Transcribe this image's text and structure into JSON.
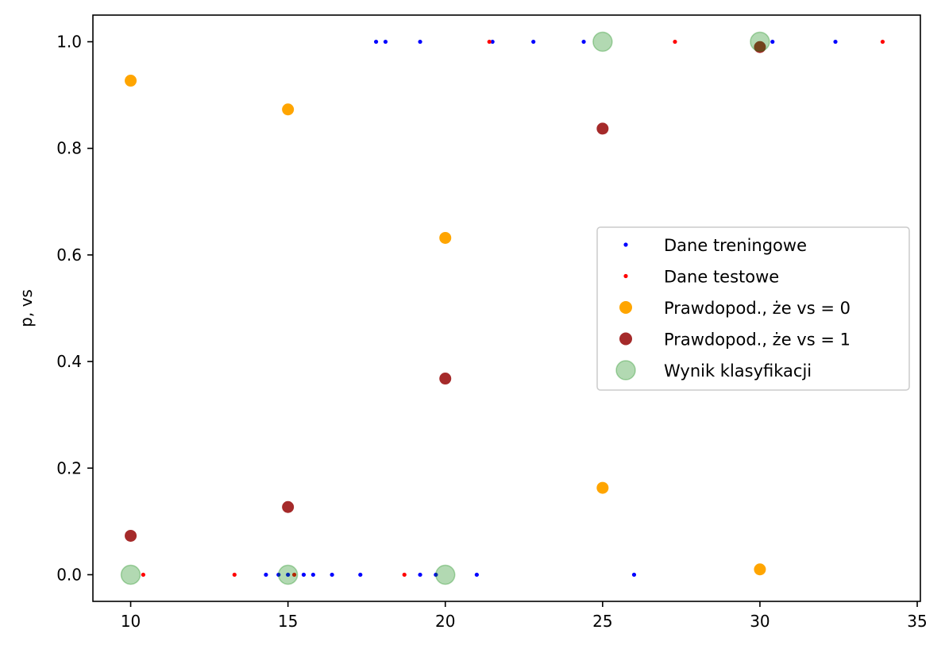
{
  "chart_data": {
    "type": "scatter",
    "title": "",
    "xlabel": "",
    "ylabel": "p, vs",
    "xlim": [
      8.8,
      35.1
    ],
    "ylim": [
      -0.05,
      1.05
    ],
    "xticks": [
      10,
      15,
      20,
      25,
      30,
      35
    ],
    "yticks": [
      0.0,
      0.2,
      0.4,
      0.6,
      0.8,
      1.0
    ],
    "xtick_labels": [
      "10",
      "15",
      "20",
      "25",
      "30",
      "35"
    ],
    "ytick_labels": [
      "0.0",
      "0.2",
      "0.4",
      "0.6",
      "0.8",
      "1.0"
    ],
    "grid": false,
    "legend_position": "center-right",
    "series": [
      {
        "name": "Dane treningowe",
        "color": "#0000ff",
        "marker": "small-dot",
        "points": [
          [
            17.8,
            1
          ],
          [
            18.1,
            1
          ],
          [
            19.2,
            1
          ],
          [
            21.5,
            1
          ],
          [
            22.8,
            1
          ],
          [
            24.4,
            1
          ],
          [
            30.4,
            1
          ],
          [
            32.4,
            1
          ],
          [
            14.3,
            0
          ],
          [
            14.7,
            0
          ],
          [
            15.0,
            0
          ],
          [
            15.5,
            0
          ],
          [
            15.8,
            0
          ],
          [
            16.4,
            0
          ],
          [
            17.3,
            0
          ],
          [
            19.2,
            0
          ],
          [
            19.7,
            0
          ],
          [
            21.0,
            0
          ],
          [
            26.0,
            0
          ]
        ]
      },
      {
        "name": "Dane testowe",
        "color": "#ff0000",
        "marker": "small-dot",
        "points": [
          [
            21.4,
            1
          ],
          [
            27.3,
            1
          ],
          [
            33.9,
            1
          ],
          [
            10.4,
            0
          ],
          [
            13.3,
            0
          ],
          [
            15.2,
            0
          ],
          [
            18.7,
            0
          ]
        ]
      },
      {
        "name": "Prawdopod., że vs = 0",
        "color": "#ffa500",
        "marker": "dot",
        "points": [
          [
            10,
            0.927
          ],
          [
            15,
            0.873
          ],
          [
            20,
            0.632
          ],
          [
            25,
            0.163
          ],
          [
            30,
            0.01
          ]
        ]
      },
      {
        "name": "Prawdopod., że vs = 1",
        "color": "#a52a2a",
        "marker": "dot",
        "points": [
          [
            10,
            0.073
          ],
          [
            15,
            0.127
          ],
          [
            20,
            0.368
          ],
          [
            25,
            0.837
          ],
          [
            30,
            0.99
          ]
        ]
      },
      {
        "name": "Wynik klasyfikacji",
        "color": "#008000",
        "alpha": 0.3,
        "marker": "large-dot",
        "points": [
          [
            10,
            0
          ],
          [
            15,
            0
          ],
          [
            20,
            0
          ],
          [
            25,
            1
          ],
          [
            30,
            1
          ]
        ]
      }
    ]
  }
}
